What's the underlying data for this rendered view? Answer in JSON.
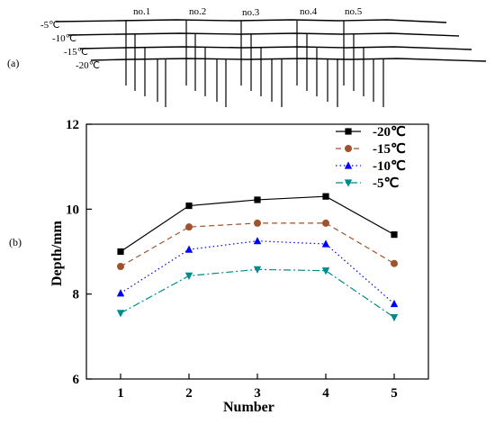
{
  "panel_labels": {
    "a": "(a)",
    "b": "(b)"
  },
  "diagram": {
    "samples": [
      "no.1",
      "no.2",
      "no.3",
      "no.4",
      "no.5"
    ],
    "temperatures": [
      "-5℃",
      "-10℃",
      "-15℃",
      "-20℃"
    ]
  },
  "chart_data": {
    "type": "line",
    "title": "",
    "xlabel": "Number",
    "ylabel": "Depth/mm",
    "x": [
      1,
      2,
      3,
      4,
      5
    ],
    "xlim": [
      0.5,
      5.5
    ],
    "ylim": [
      6,
      12
    ],
    "yticks": [
      6,
      8,
      10,
      12
    ],
    "legend_position": "top-right",
    "series": [
      {
        "name": "-20℃",
        "values": [
          9.0,
          10.08,
          10.22,
          10.3,
          9.4
        ],
        "color": "#000000",
        "marker": "square",
        "dash": "solid"
      },
      {
        "name": "-15℃",
        "values": [
          8.65,
          9.58,
          9.67,
          9.67,
          8.72
        ],
        "color": "#a0522d",
        "marker": "circle",
        "dash": "dashed"
      },
      {
        "name": "-10℃",
        "values": [
          8.02,
          9.05,
          9.25,
          9.18,
          7.77
        ],
        "color": "#0000ff",
        "marker": "triangle-up",
        "dash": "dotted"
      },
      {
        "name": "-5℃",
        "values": [
          7.55,
          8.43,
          8.58,
          8.55,
          7.45
        ],
        "color": "#008b8b",
        "marker": "triangle-down",
        "dash": "dashdot"
      }
    ]
  }
}
